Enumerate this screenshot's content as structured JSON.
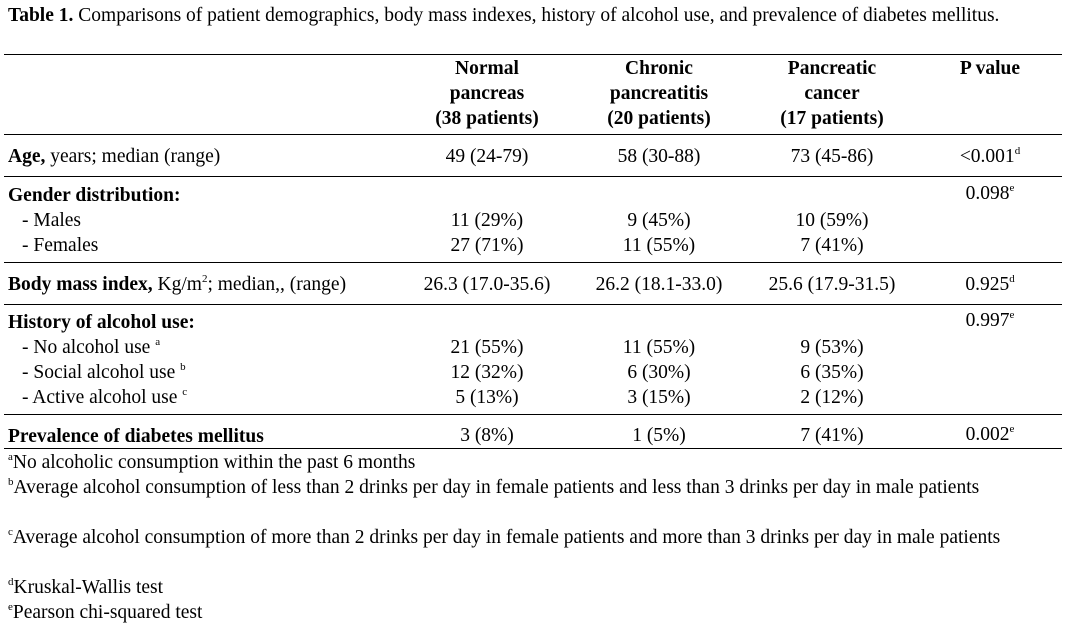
{
  "caption": {
    "label": "Table 1.",
    "text": "Comparisons of patient demographics, body mass indexes, history of alcohol use, and prevalence of diabetes mellitus."
  },
  "columns": [
    {
      "line1": "Normal",
      "line2": "pancreas",
      "line3": "(38 patients)"
    },
    {
      "line1": "Chronic",
      "line2": "pancreatitis",
      "line3": "(20 patients)"
    },
    {
      "line1": "Pancreatic",
      "line2": "cancer",
      "line3": "(17 patients)"
    },
    {
      "line1": "P value",
      "line2": "",
      "line3": ""
    }
  ],
  "rows": {
    "age": {
      "label_bold": "Age,",
      "label_rest": " years; median (range)",
      "values": [
        "49 (24-79)",
        "58 (30-88)",
        "73 (45-86)"
      ],
      "p": "<0.001",
      "p_sup": "d"
    },
    "gender": {
      "label_bold": "Gender distribution:",
      "p": "0.098",
      "p_sup": "e"
    },
    "males": {
      "label": "- Males",
      "values": [
        "11 (29%)",
        "9 (45%)",
        "10 (59%)"
      ]
    },
    "females": {
      "label": "- Females",
      "values": [
        "27 (71%)",
        "11 (55%)",
        "7 (41%)"
      ]
    },
    "bmi": {
      "label_bold": "Body mass index,",
      "label_rest_a": " Kg/m",
      "label_sup": "2",
      "label_rest_b": "; median,, (range)",
      "values": [
        "26.3 (17.0-35.6)",
        "26.2 (18.1-33.0)",
        "25.6 (17.9-31.5)"
      ],
      "p": "0.925",
      "p_sup": "d"
    },
    "alcohol": {
      "label_bold": "History of alcohol use:",
      "p": "0.997",
      "p_sup": "e"
    },
    "no_alcohol": {
      "label": "- No alcohol use ",
      "label_sup": "a",
      "values": [
        "21 (55%)",
        "11 (55%)",
        "9 (53%)"
      ]
    },
    "social_alcohol": {
      "label": "- Social alcohol use ",
      "label_sup": "b",
      "values": [
        "12 (32%)",
        "6 (30%)",
        "6 (35%)"
      ]
    },
    "active_alcohol": {
      "label": "- Active alcohol use ",
      "label_sup": "c",
      "values": [
        "5 (13%)",
        "3 (15%)",
        "2 (12%)"
      ]
    },
    "diabetes": {
      "label_bold": "Prevalence of diabetes mellitus",
      "values": [
        "3 (8%)",
        "1 (5%)",
        "7 (41%)"
      ],
      "p": "0.002",
      "p_sup": "e"
    }
  },
  "footnotes": [
    {
      "mark": "a",
      "text": "No alcoholic consumption within the past 6 months"
    },
    {
      "mark": "b",
      "text": "Average alcohol consumption of less than 2 drinks per day in female patients and less than 3 drinks per day in male patients"
    },
    {
      "mark": "c",
      "text": "Average alcohol consumption of more than 2 drinks per day in female patients and more than 3 drinks per day in male patients"
    },
    {
      "mark": "d",
      "text": "Kruskal-Wallis test"
    },
    {
      "mark": "e",
      "text": "Pearson chi-squared test"
    }
  ]
}
